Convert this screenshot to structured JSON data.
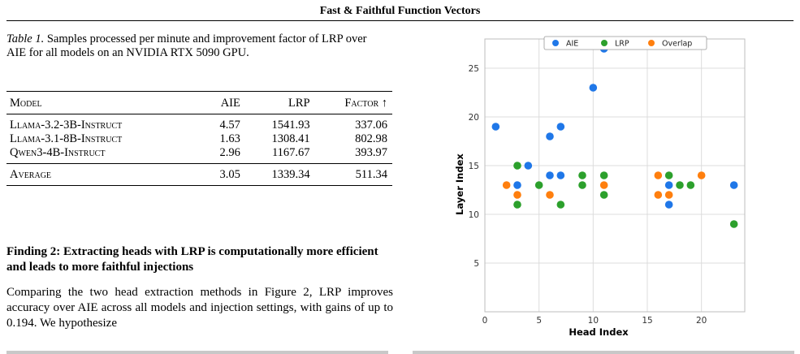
{
  "running_head": "Fast & Faithful Function Vectors",
  "caption": {
    "label": "Table 1.",
    "text": "Samples processed per minute and improvement factor of LRP over AIE for all models on an NVIDIA RTX 5090 GPU."
  },
  "table": {
    "headers": {
      "model": "Model",
      "aie": "AIE",
      "lrp": "LRP",
      "factor": "Factor ↑"
    },
    "rows": [
      {
        "model": "Llama-3.2-3B-Instruct",
        "aie": "4.57",
        "lrp": "1541.93",
        "factor": "337.06"
      },
      {
        "model": "Llama-3.1-8B-Instruct",
        "aie": "1.63",
        "lrp": "1308.41",
        "factor": "802.98"
      },
      {
        "model": "Qwen3-4B-Instruct",
        "aie": "2.96",
        "lrp": "1167.67",
        "factor": "393.97"
      }
    ],
    "average": {
      "model": "Average",
      "aie": "3.05",
      "lrp": "1339.34",
      "factor": "511.34"
    }
  },
  "section": {
    "heading": "Finding 2: Extracting heads with LRP is computationally more efficient and leads to more faithful injections",
    "body": "Comparing the two head extraction methods in Figure 2, LRP improves accuracy over AIE across all models and injection settings, with gains of up to 0.194. We hypothesize"
  },
  "chart_data": {
    "type": "scatter",
    "title": "",
    "xlabel": "Head Index",
    "ylabel": "Layer Index",
    "xlim": [
      0,
      24
    ],
    "ylim": [
      0,
      28
    ],
    "xticks": [
      0,
      5,
      10,
      15,
      20
    ],
    "yticks": [
      5,
      10,
      15,
      20,
      25
    ],
    "grid": true,
    "legend": "top-center",
    "series": [
      {
        "name": "AIE",
        "color": "#1f77e8",
        "points": [
          [
            1,
            19
          ],
          [
            3,
            13
          ],
          [
            4,
            15
          ],
          [
            6,
            14
          ],
          [
            6,
            18
          ],
          [
            7,
            19
          ],
          [
            7,
            14
          ],
          [
            10,
            23
          ],
          [
            11,
            27
          ],
          [
            17,
            13
          ],
          [
            17,
            11
          ],
          [
            23,
            13
          ]
        ]
      },
      {
        "name": "LRP",
        "color": "#2ca02c",
        "points": [
          [
            3,
            15
          ],
          [
            3,
            11
          ],
          [
            5,
            13
          ],
          [
            7,
            11
          ],
          [
            9,
            14
          ],
          [
            9,
            13
          ],
          [
            11,
            14
          ],
          [
            11,
            12
          ],
          [
            17,
            14
          ],
          [
            18,
            13
          ],
          [
            19,
            13
          ],
          [
            23,
            9
          ]
        ]
      },
      {
        "name": "Overlap",
        "color": "#ff7f0e",
        "points": [
          [
            2,
            13
          ],
          [
            3,
            12
          ],
          [
            6,
            12
          ],
          [
            11,
            13
          ],
          [
            16,
            14
          ],
          [
            16,
            12
          ],
          [
            17,
            12
          ],
          [
            20,
            14
          ]
        ]
      }
    ]
  }
}
